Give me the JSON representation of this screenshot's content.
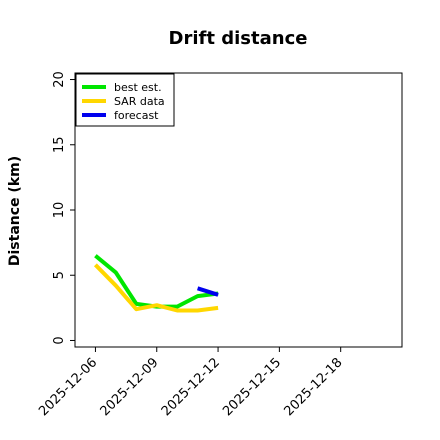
{
  "chart_data": {
    "type": "line",
    "title": "Drift distance",
    "xlabel": "",
    "ylabel": "Distance (km)",
    "xlim": [
      "2025-12-05",
      "2025-12-21"
    ],
    "ylim": [
      -0.5,
      20.5
    ],
    "y_ticks": [
      0,
      5,
      10,
      15,
      20
    ],
    "x_ticks": [
      "2025-12-06",
      "2025-12-09",
      "2025-12-12",
      "2025-12-15",
      "2025-12-18"
    ],
    "legend_position": "top-left",
    "grid": false,
    "series": [
      {
        "name": "best est.",
        "color": "#00e600",
        "x": [
          "2025-12-06",
          "2025-12-07",
          "2025-12-08",
          "2025-12-09",
          "2025-12-10",
          "2025-12-11",
          "2025-12-12"
        ],
        "y": [
          6.5,
          5.2,
          2.8,
          2.6,
          2.6,
          3.4,
          3.6
        ]
      },
      {
        "name": "SAR data",
        "color": "#ffd700",
        "x": [
          "2025-12-06",
          "2025-12-07",
          "2025-12-08",
          "2025-12-09",
          "2025-12-10",
          "2025-12-11",
          "2025-12-12"
        ],
        "y": [
          5.8,
          4.2,
          2.4,
          2.7,
          2.3,
          2.3,
          2.5
        ]
      },
      {
        "name": "forecast",
        "color": "#0000ee",
        "x": [
          "2025-12-11",
          "2025-12-12"
        ],
        "y": [
          4.0,
          3.5
        ]
      }
    ]
  }
}
